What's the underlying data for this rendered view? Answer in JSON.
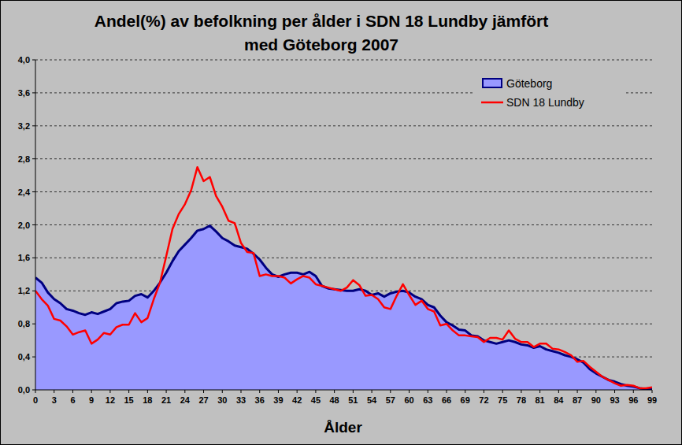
{
  "chart_data": {
    "type": "line",
    "title": "Andel(%) av befolkning per ålder i SDN 18 Lundby jämfört\nmed Göteborg 2007",
    "x_label": "Ålder",
    "x": [
      0,
      1,
      2,
      3,
      4,
      5,
      6,
      7,
      8,
      9,
      10,
      11,
      12,
      13,
      14,
      15,
      16,
      17,
      18,
      19,
      20,
      21,
      22,
      23,
      24,
      25,
      26,
      27,
      28,
      29,
      30,
      31,
      32,
      33,
      34,
      35,
      36,
      37,
      38,
      39,
      40,
      41,
      42,
      43,
      44,
      45,
      46,
      47,
      48,
      49,
      50,
      51,
      52,
      53,
      54,
      55,
      56,
      57,
      58,
      59,
      60,
      61,
      62,
      63,
      64,
      65,
      66,
      67,
      68,
      69,
      70,
      71,
      72,
      73,
      74,
      75,
      76,
      77,
      78,
      79,
      80,
      81,
      82,
      83,
      84,
      85,
      86,
      87,
      88,
      89,
      90,
      91,
      92,
      93,
      94,
      95,
      96,
      97,
      98,
      99
    ],
    "series": [
      {
        "name": "Göteborg",
        "type": "area",
        "color": "#9999ff",
        "values": [
          1.36,
          1.3,
          1.18,
          1.1,
          1.05,
          0.98,
          0.96,
          0.93,
          0.91,
          0.94,
          0.92,
          0.95,
          0.98,
          1.05,
          1.07,
          1.08,
          1.14,
          1.16,
          1.12,
          1.2,
          1.3,
          1.42,
          1.56,
          1.68,
          1.76,
          1.84,
          1.93,
          1.95,
          1.99,
          1.92,
          1.84,
          1.8,
          1.75,
          1.73,
          1.71,
          1.65,
          1.58,
          1.48,
          1.4,
          1.37,
          1.4,
          1.42,
          1.42,
          1.4,
          1.43,
          1.38,
          1.26,
          1.23,
          1.22,
          1.21,
          1.2,
          1.2,
          1.22,
          1.2,
          1.15,
          1.17,
          1.13,
          1.17,
          1.19,
          1.2,
          1.18,
          1.13,
          1.1,
          1.03,
          1.0,
          0.9,
          0.82,
          0.78,
          0.73,
          0.72,
          0.66,
          0.65,
          0.6,
          0.58,
          0.56,
          0.58,
          0.6,
          0.58,
          0.55,
          0.54,
          0.51,
          0.53,
          0.49,
          0.47,
          0.45,
          0.42,
          0.4,
          0.37,
          0.33,
          0.25,
          0.2,
          0.16,
          0.12,
          0.1,
          0.07,
          0.05,
          0.04,
          0.02,
          0.01,
          0.01
        ]
      },
      {
        "name": "SDN 18 Lundby",
        "type": "line",
        "color": "#ff0000",
        "values": [
          1.2,
          1.1,
          1.02,
          0.86,
          0.84,
          0.77,
          0.67,
          0.7,
          0.72,
          0.56,
          0.61,
          0.69,
          0.67,
          0.76,
          0.79,
          0.79,
          0.93,
          0.82,
          0.87,
          1.1,
          1.3,
          1.62,
          1.95,
          2.13,
          2.25,
          2.42,
          2.7,
          2.53,
          2.58,
          2.35,
          2.22,
          2.05,
          2.02,
          1.78,
          1.67,
          1.66,
          1.38,
          1.4,
          1.38,
          1.38,
          1.36,
          1.29,
          1.34,
          1.38,
          1.36,
          1.28,
          1.26,
          1.24,
          1.22,
          1.2,
          1.24,
          1.33,
          1.27,
          1.14,
          1.15,
          1.1,
          1.0,
          0.98,
          1.14,
          1.28,
          1.15,
          1.03,
          1.08,
          0.98,
          0.95,
          0.78,
          0.8,
          0.72,
          0.66,
          0.66,
          0.65,
          0.64,
          0.58,
          0.63,
          0.63,
          0.61,
          0.72,
          0.62,
          0.58,
          0.58,
          0.52,
          0.56,
          0.56,
          0.5,
          0.49,
          0.46,
          0.42,
          0.34,
          0.35,
          0.28,
          0.22,
          0.16,
          0.12,
          0.08,
          0.05,
          0.06,
          0.05,
          0.02,
          0.02,
          0.03
        ]
      }
    ],
    "xlim": [
      0,
      99
    ],
    "xticks": [
      0,
      3,
      6,
      9,
      12,
      15,
      18,
      21,
      24,
      27,
      30,
      33,
      36,
      39,
      42,
      45,
      48,
      51,
      54,
      57,
      60,
      63,
      66,
      69,
      72,
      75,
      78,
      81,
      84,
      87,
      90,
      93,
      96,
      99
    ],
    "ylim": [
      0,
      4
    ],
    "yticks": [
      {
        "value": 0,
        "label": "0,0"
      },
      {
        "value": 0.4,
        "label": "0,4"
      },
      {
        "value": 0.8,
        "label": "0,8"
      },
      {
        "value": 1.2,
        "label": "1,2"
      },
      {
        "value": 1.6,
        "label": "1,6"
      },
      {
        "value": 2.0,
        "label": "2,0"
      },
      {
        "value": 2.4,
        "label": "2,4"
      },
      {
        "value": 2.8,
        "label": "2,8"
      },
      {
        "value": 3.2,
        "label": "3,2"
      },
      {
        "value": 3.6,
        "label": "3,6"
      },
      {
        "value": 4.0,
        "label": "4,0"
      }
    ],
    "grid": true,
    "legend": "upper right"
  }
}
